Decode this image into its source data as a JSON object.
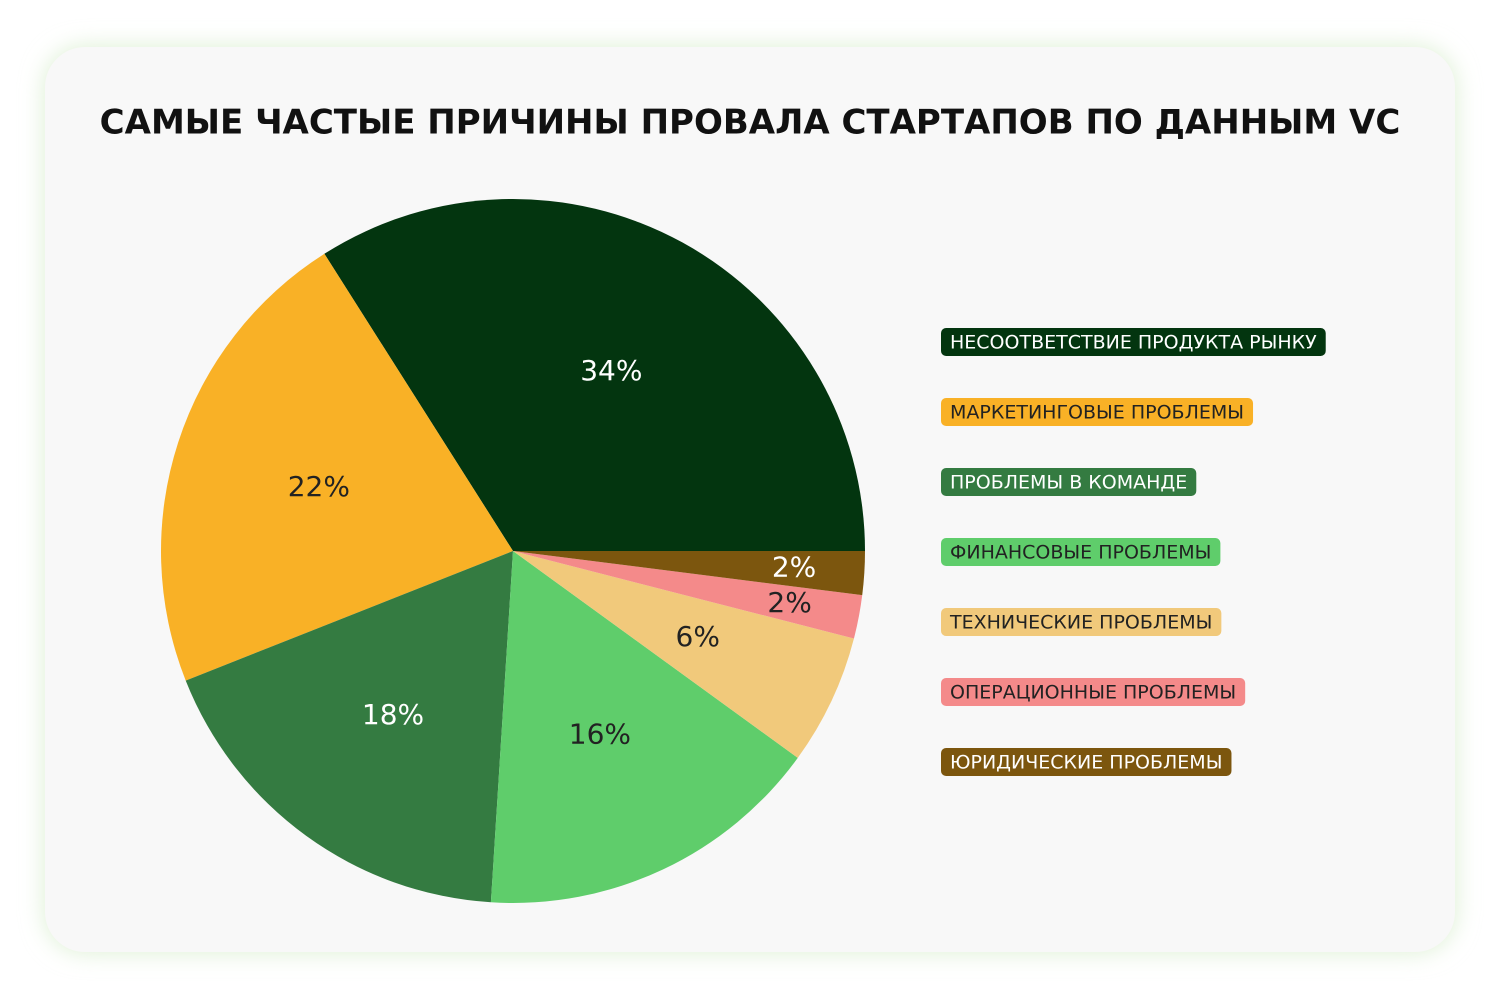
{
  "chart_data": {
    "type": "pie",
    "title": "САМЫЕ ЧАСТЫЕ ПРИЧИНЫ ПРОВАЛА СТАРТАПОВ ПО ДАННЫМ VC",
    "categories": [
      "НЕСООТВЕТСТВИЕ ПРОДУКТА РЫНКУ",
      "МАРКЕТИНГОВЫЕ ПРОБЛЕМЫ",
      "ПРОБЛЕМЫ В КОМАНДЕ",
      "ФИНАНСОВЫЕ ПРОБЛЕМЫ",
      "ТЕХНИЧЕСКИЕ ПРОБЛЕМЫ",
      "ОПЕРАЦИОННЫЕ ПРОБЛЕМЫ",
      "ЮРИДИЧЕСКИЕ ПРОБЛЕМЫ"
    ],
    "values": [
      34,
      22,
      18,
      16,
      6,
      2,
      2
    ],
    "value_labels": [
      "34%",
      "22%",
      "18%",
      "16%",
      "6%",
      "2%",
      "2%"
    ],
    "colors": [
      "#03350f",
      "#f9b126",
      "#347b41",
      "#5fcd6b",
      "#f1c97b",
      "#f48a8a",
      "#7c560e"
    ],
    "legend": "right"
  }
}
